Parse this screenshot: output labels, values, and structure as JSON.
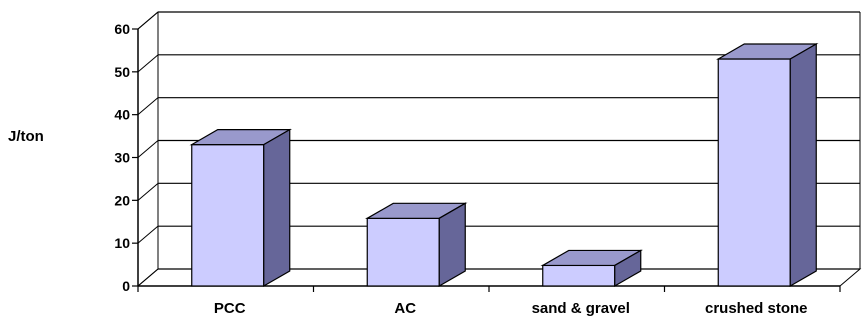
{
  "chart_data": {
    "type": "bar",
    "style": "3d",
    "title": "",
    "xlabel": "",
    "ylabel": "J/ton",
    "ylim": [
      0,
      60
    ],
    "yticks": [
      0,
      10,
      20,
      30,
      40,
      50,
      60
    ],
    "grid": true,
    "categories": [
      "PCC",
      "AC",
      "sand & gravel",
      "crushed stone"
    ],
    "values": [
      33,
      15.8,
      4.8,
      53
    ],
    "colors": {
      "bar_front": "#ccccff",
      "bar_top": "#9999cc",
      "bar_side": "#666699",
      "grid": "#000000"
    }
  }
}
